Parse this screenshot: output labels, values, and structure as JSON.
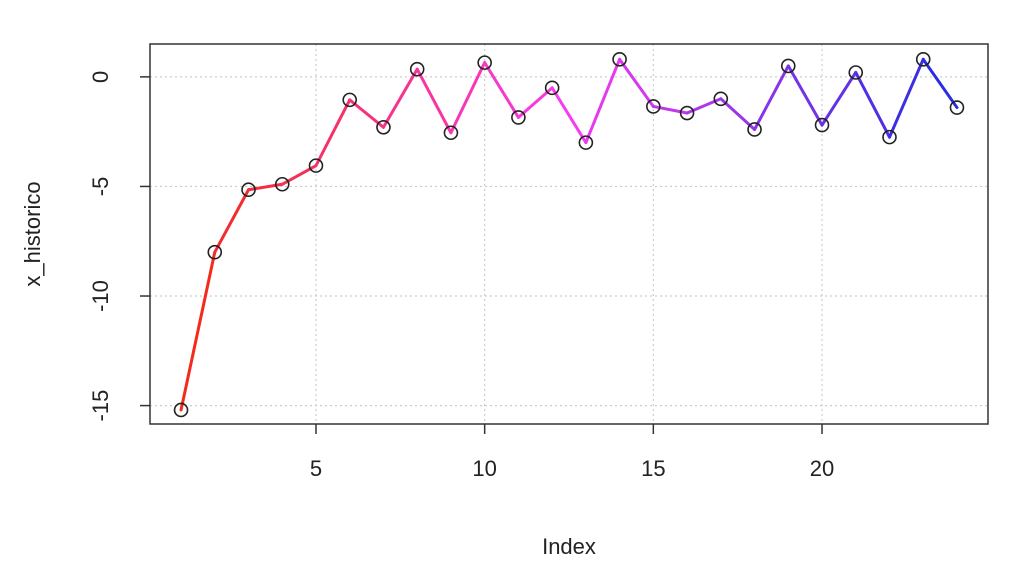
{
  "chart_data": {
    "type": "line",
    "x_label": "Index",
    "y_label": "x_historico",
    "x": [
      1,
      2,
      3,
      4,
      5,
      6,
      7,
      8,
      9,
      10,
      11,
      12,
      13,
      14,
      15,
      16,
      17,
      18,
      19,
      20,
      21,
      22,
      23,
      24
    ],
    "values": [
      -15.2,
      -8.0,
      -5.15,
      -4.9,
      -4.05,
      -1.05,
      -2.3,
      0.35,
      -2.55,
      0.65,
      -1.85,
      -0.5,
      -3.0,
      0.8,
      -1.35,
      -1.65,
      -1.0,
      -2.4,
      0.5,
      -2.2,
      0.2,
      -2.75,
      0.8,
      -1.4
    ],
    "line_color_ramp": [
      "#f42a1c",
      "#f83cf0",
      "#2a2ee0"
    ],
    "marker_color": "#222222",
    "xlim": [
      0.08,
      24.92
    ],
    "xticks": [
      5,
      10,
      15,
      20
    ],
    "ylim": [
      -15.84,
      1.5
    ],
    "yticks": [
      -15,
      -10,
      -5,
      0
    ],
    "grid": true
  }
}
